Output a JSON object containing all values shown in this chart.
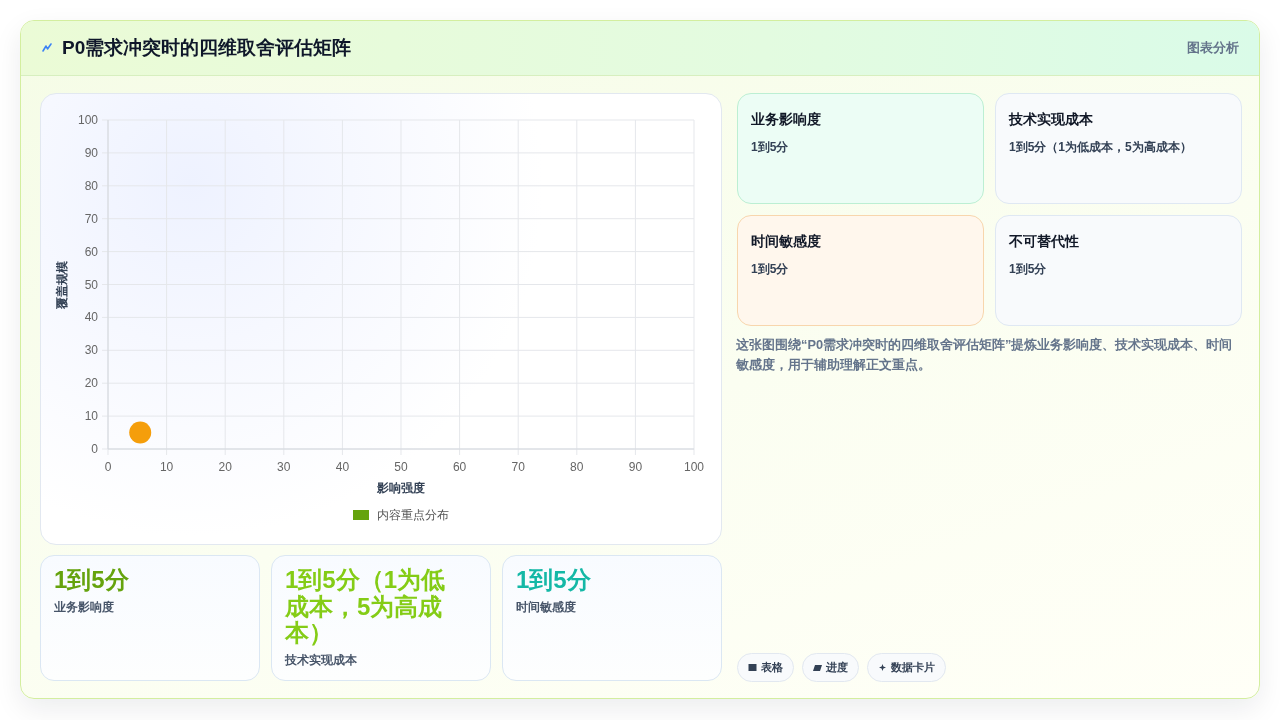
{
  "chart_data": [
    {
      "type": "scatter",
      "title": "P0需求冲突时的四维取舍评估矩阵",
      "xlabel": "影响强度",
      "ylabel": "覆盖规模",
      "xlim": [
        0,
        100
      ],
      "ylim": [
        0,
        100
      ],
      "xticks": [
        0,
        10,
        20,
        30,
        40,
        50,
        60,
        70,
        80,
        90,
        100
      ],
      "yticks": [
        0,
        10,
        20,
        30,
        40,
        50,
        60,
        70,
        80,
        90,
        100
      ],
      "grid": true,
      "legend": "bottom",
      "marker": "circle",
      "series": [
        {
          "name": "内容重点分布",
          "color": "#65a30d",
          "colors": [
            "#f59e0b"
          ],
          "x": [
            5.5
          ],
          "values": [
            5
          ]
        }
      ]
    },
    {
      "type": "other",
      "annotations": [
        "业务影响度",
        "1到5分",
        "技术实现成本",
        "1到5分（1为低成本，5为高成本）",
        "时间敏感度",
        "1到5分",
        "不可替代性",
        "1到5分",
        "这张图围绕“P0需求冲突时的四维取舍评估矩阵”提炼业务影响度、技术实现成本、时间敏感度，用于辅助理解正文重点。"
      ]
    },
    {
      "type": "other",
      "annotations": [
        "1到5分",
        "业务影响度",
        "1到5分（1为低成本，5为高成本）",
        "技术实现成本",
        "1到5分",
        "时间敏感度"
      ]
    },
    {
      "type": "other",
      "annotations": [
        "图表分析",
        "表格",
        "进度",
        "数据卡片"
      ]
    }
  ]
}
